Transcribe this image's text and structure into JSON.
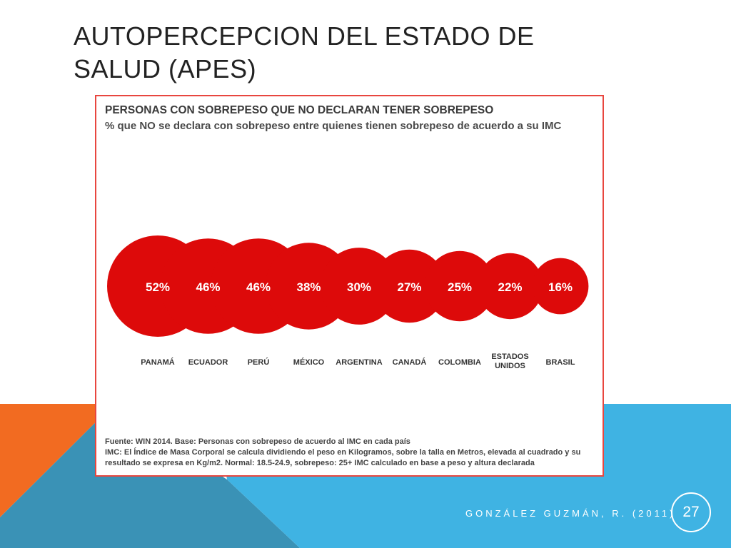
{
  "slide": {
    "title": "AUTOPERCEPCION DEL ESTADO DE SALUD (APES)",
    "footer_credit": "GONZÁLEZ GUZMÁN, R. (2011)",
    "page_number": "27"
  },
  "colors": {
    "bubble": "#dd0a0a",
    "frame": "#e8463f",
    "orange": "#f26b21",
    "blue": "#3fb3e3",
    "blue_dark": "#3a92b6"
  },
  "chart_data": {
    "type": "bubble",
    "title": "PERSONAS CON SOBREPESO QUE NO DECLARAN TENER SOBREPESO",
    "subtitle": "% que NO se declara con sobrepeso entre quienes tienen sobrepeso de acuerdo a su IMC",
    "categories": [
      [
        "PANAMÁ"
      ],
      [
        "ECUADOR"
      ],
      [
        "PERÚ"
      ],
      [
        "MÉXICO"
      ],
      [
        "ARGENTINA"
      ],
      [
        "CANADÁ"
      ],
      [
        "COLOMBIA"
      ],
      [
        "ESTADOS",
        "UNIDOS"
      ],
      [
        "BRASIL"
      ]
    ],
    "values": [
      52,
      46,
      46,
      38,
      30,
      27,
      25,
      22,
      16
    ],
    "value_labels": [
      "52%",
      "46%",
      "46%",
      "38%",
      "30%",
      "27%",
      "25%",
      "22%",
      "16%"
    ],
    "notes": [
      "Fuente: WIN 2014. Base: Personas con sobrepeso de acuerdo al IMC en cada país",
      "IMC: El Índice de Masa Corporal se calcula dividiendo el peso en Kilogramos, sobre la talla en Metros, elevada al cuadrado y su resultado se expresa en Kg/m2. Normal: 18.5-24.9, sobrepeso: 25+ IMC calculado en base a peso y altura declarada"
    ]
  }
}
